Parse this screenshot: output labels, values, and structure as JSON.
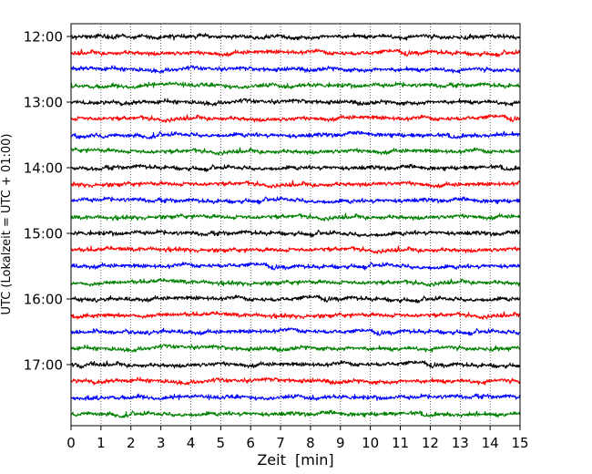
{
  "chart_data": {
    "type": "line",
    "title": "",
    "xlabel": "Zeit  [min]",
    "ylabel": "UTC (Lokalzeit = UTC + 01:00)",
    "xlim": [
      0,
      15
    ],
    "x_ticks": [
      0,
      1,
      2,
      3,
      4,
      5,
      6,
      7,
      8,
      9,
      10,
      11,
      12,
      13,
      14,
      15
    ],
    "y_tick_labels": [
      "12:00",
      "13:00",
      "14:00",
      "15:00",
      "16:00",
      "17:00"
    ],
    "grid": "vertical dotted at each minute",
    "traces_per_hour": 4,
    "trace_interval_minutes": 15,
    "trace_start_times": [
      "12:00",
      "12:15",
      "12:30",
      "12:45",
      "13:00",
      "13:15",
      "13:30",
      "13:45",
      "14:00",
      "14:15",
      "14:30",
      "14:45",
      "15:00",
      "15:15",
      "15:30",
      "15:45",
      "16:00",
      "16:15",
      "16:30",
      "16:45",
      "17:00",
      "17:15",
      "17:30",
      "17:45"
    ],
    "trace_colors": [
      "#000000",
      "#ff0000",
      "#0000ff",
      "#008000"
    ]
  }
}
